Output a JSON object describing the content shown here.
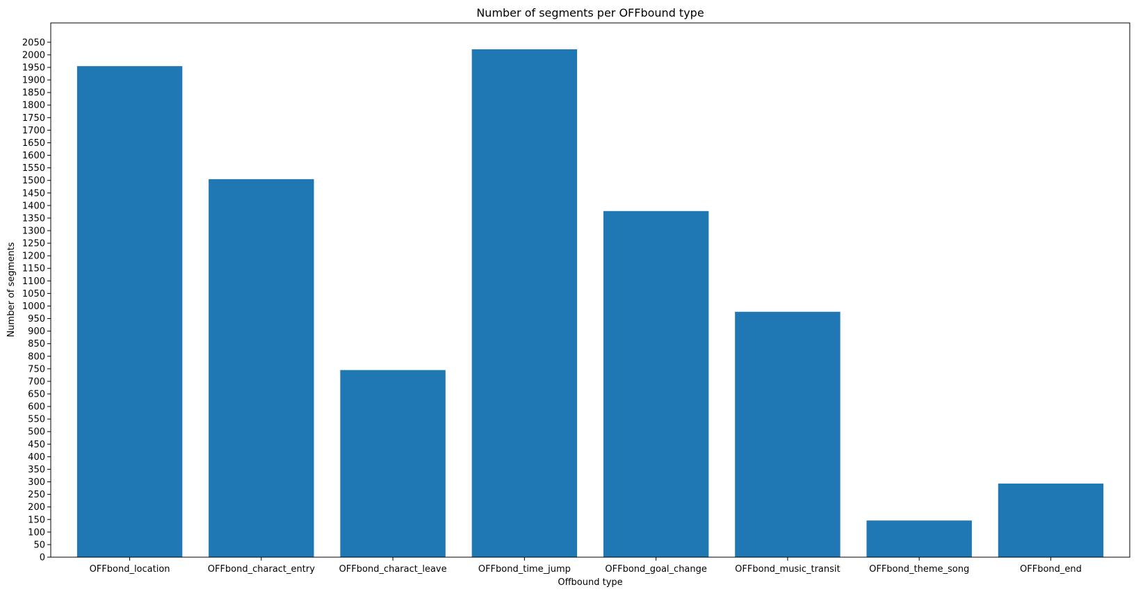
{
  "chart_data": {
    "type": "bar",
    "title": "Number of segments per OFFbound type",
    "xlabel": "Offbound type",
    "ylabel": "Number of segments",
    "categories": [
      "OFFbond_location",
      "OFFbond_charact_entry",
      "OFFbond_charact_leave",
      "OFFbond_time_jump",
      "OFFbond_goal_change",
      "OFFbond_music_transit",
      "OFFbond_theme_song",
      "OFFbond_end"
    ],
    "values": [
      1955,
      1505,
      745,
      2022,
      1378,
      977,
      146,
      293
    ],
    "ylim": [
      0,
      2127
    ],
    "ytick_step": 50,
    "ytick_max": 2050,
    "grid": false,
    "legend": "none",
    "colors": {
      "bar": "#1f77b4",
      "axis": "#000000",
      "background": "#ffffff"
    }
  }
}
